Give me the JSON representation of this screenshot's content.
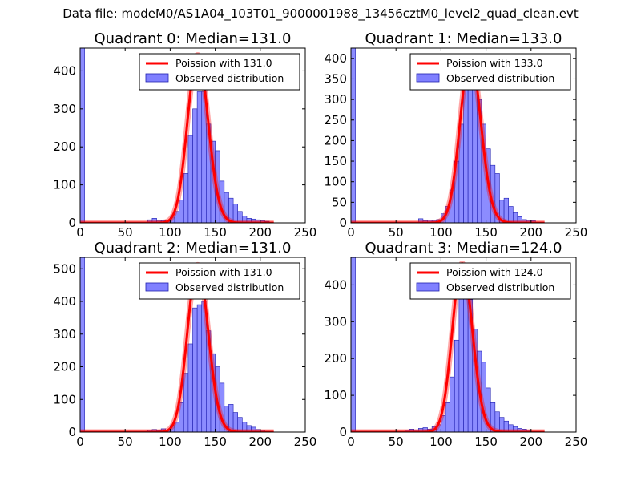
{
  "figure": {
    "title": "Data file: modeM0/AS1A04_103T01_9000001988_13456cztM0_level2_quad_clean.evt"
  },
  "colors": {
    "bar_fill": "#8080ff",
    "bar_edge": "#2020b0",
    "poisson_line": "#ff0000"
  },
  "chart_data": [
    {
      "type": "bar",
      "title": "Quadrant 0: Median=131.0",
      "xlim": [
        0,
        250
      ],
      "ylim": [
        0,
        460
      ],
      "xticks": [
        0,
        50,
        100,
        150,
        200,
        250
      ],
      "yticks": [
        0,
        100,
        200,
        300,
        400
      ],
      "bin_width": 5,
      "legend_position": "top-right",
      "series": [
        {
          "name": "Poission with 131.0",
          "kind": "line",
          "lambda": 131,
          "peak": 442
        },
        {
          "name": "Observed distribution",
          "kind": "histogram",
          "bins": [
            [
              0,
              460
            ],
            [
              75,
              8
            ],
            [
              80,
              12
            ],
            [
              85,
              5
            ],
            [
              90,
              6
            ],
            [
              95,
              4
            ],
            [
              100,
              15
            ],
            [
              105,
              30
            ],
            [
              110,
              60
            ],
            [
              115,
              130
            ],
            [
              120,
              230
            ],
            [
              125,
              300
            ],
            [
              130,
              345
            ],
            [
              135,
              345
            ],
            [
              140,
              260
            ],
            [
              145,
              215
            ],
            [
              150,
              190
            ],
            [
              155,
              110
            ],
            [
              160,
              80
            ],
            [
              165,
              65
            ],
            [
              170,
              50
            ],
            [
              175,
              30
            ],
            [
              180,
              18
            ],
            [
              185,
              12
            ],
            [
              190,
              10
            ],
            [
              195,
              8
            ],
            [
              200,
              6
            ],
            [
              205,
              4
            ]
          ]
        }
      ]
    },
    {
      "type": "bar",
      "title": "Quadrant 1: Median=133.0",
      "xlim": [
        0,
        250
      ],
      "ylim": [
        0,
        425
      ],
      "xticks": [
        0,
        50,
        100,
        150,
        200,
        250
      ],
      "yticks": [
        0,
        50,
        100,
        150,
        200,
        250,
        300,
        350,
        400
      ],
      "bin_width": 5,
      "legend_position": "top-right",
      "series": [
        {
          "name": "Poission with 133.0",
          "kind": "line",
          "lambda": 133,
          "peak": 405
        },
        {
          "name": "Observed distribution",
          "kind": "histogram",
          "bins": [
            [
              0,
              425
            ],
            [
              75,
              10
            ],
            [
              80,
              5
            ],
            [
              85,
              7
            ],
            [
              90,
              6
            ],
            [
              95,
              8
            ],
            [
              100,
              22
            ],
            [
              105,
              40
            ],
            [
              110,
              80
            ],
            [
              115,
              150
            ],
            [
              120,
              240
            ],
            [
              125,
              330
            ],
            [
              130,
              355
            ],
            [
              135,
              350
            ],
            [
              140,
              300
            ],
            [
              145,
              240
            ],
            [
              150,
              180
            ],
            [
              155,
              140
            ],
            [
              160,
              120
            ],
            [
              165,
              55
            ],
            [
              170,
              60
            ],
            [
              175,
              40
            ],
            [
              180,
              25
            ],
            [
              185,
              15
            ],
            [
              190,
              8
            ],
            [
              195,
              6
            ],
            [
              200,
              5
            ],
            [
              205,
              2
            ]
          ]
        }
      ]
    },
    {
      "type": "bar",
      "title": "Quadrant 2: Median=131.0",
      "xlim": [
        0,
        250
      ],
      "ylim": [
        0,
        535
      ],
      "xticks": [
        0,
        50,
        100,
        150,
        200,
        250
      ],
      "yticks": [
        0,
        100,
        200,
        300,
        400,
        500
      ],
      "bin_width": 5,
      "legend_position": "top-right",
      "series": [
        {
          "name": "Poission with 131.0",
          "kind": "line",
          "lambda": 131,
          "peak": 512
        },
        {
          "name": "Observed distribution",
          "kind": "histogram",
          "bins": [
            [
              0,
              535
            ],
            [
              75,
              6
            ],
            [
              80,
              8
            ],
            [
              85,
              5
            ],
            [
              90,
              10
            ],
            [
              95,
              6
            ],
            [
              100,
              20
            ],
            [
              105,
              30
            ],
            [
              110,
              90
            ],
            [
              115,
              180
            ],
            [
              120,
              270
            ],
            [
              125,
              380
            ],
            [
              130,
              390
            ],
            [
              135,
              400
            ],
            [
              140,
              310
            ],
            [
              145,
              240
            ],
            [
              150,
              200
            ],
            [
              155,
              150
            ],
            [
              160,
              80
            ],
            [
              165,
              85
            ],
            [
              170,
              60
            ],
            [
              175,
              45
            ],
            [
              180,
              30
            ],
            [
              185,
              20
            ],
            [
              190,
              15
            ],
            [
              195,
              8
            ],
            [
              200,
              6
            ],
            [
              205,
              3
            ]
          ]
        }
      ]
    },
    {
      "type": "bar",
      "title": "Quadrant 3: Median=124.0",
      "xlim": [
        0,
        250
      ],
      "ylim": [
        0,
        475
      ],
      "xticks": [
        0,
        50,
        100,
        150,
        200,
        250
      ],
      "yticks": [
        0,
        100,
        200,
        300,
        400
      ],
      "bin_width": 5,
      "legend_position": "top-right",
      "series": [
        {
          "name": "Poission with 124.0",
          "kind": "line",
          "lambda": 124,
          "peak": 458
        },
        {
          "name": "Observed distribution",
          "kind": "histogram",
          "bins": [
            [
              0,
              475
            ],
            [
              60,
              5
            ],
            [
              65,
              8
            ],
            [
              70,
              6
            ],
            [
              75,
              10
            ],
            [
              80,
              12
            ],
            [
              85,
              8
            ],
            [
              90,
              15
            ],
            [
              95,
              20
            ],
            [
              100,
              45
            ],
            [
              105,
              80
            ],
            [
              110,
              150
            ],
            [
              115,
              250
            ],
            [
              120,
              370
            ],
            [
              125,
              400
            ],
            [
              130,
              360
            ],
            [
              135,
              280
            ],
            [
              140,
              220
            ],
            [
              145,
              190
            ],
            [
              150,
              120
            ],
            [
              155,
              80
            ],
            [
              160,
              55
            ],
            [
              165,
              40
            ],
            [
              170,
              30
            ],
            [
              175,
              20
            ],
            [
              180,
              15
            ],
            [
              185,
              10
            ],
            [
              190,
              8
            ],
            [
              195,
              5
            ]
          ]
        }
      ]
    }
  ]
}
